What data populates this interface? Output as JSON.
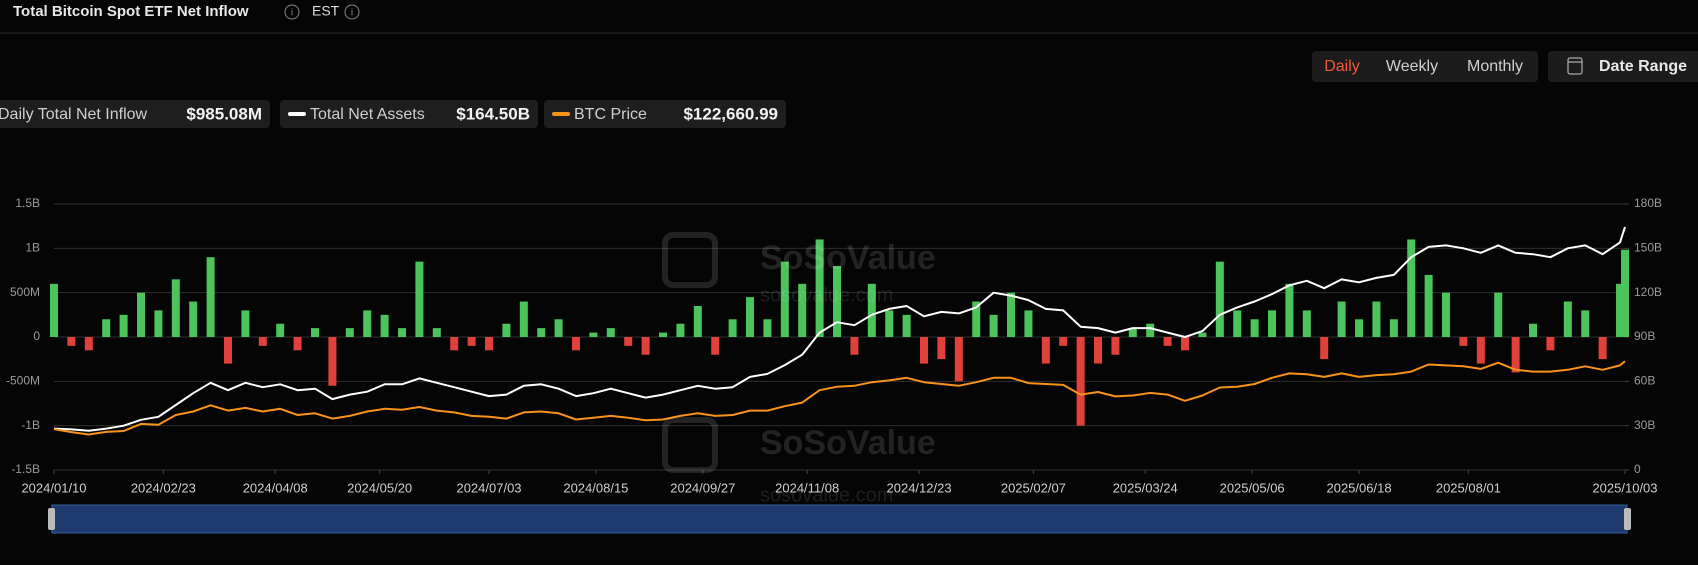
{
  "header": {
    "title": "Total Bitcoin Spot ETF Net Inflow",
    "timezone": "EST"
  },
  "controls": {
    "periods": [
      "Daily",
      "Weekly",
      "Monthly"
    ],
    "active": "Daily",
    "date_range": "Date Range"
  },
  "watermark": {
    "brand": "SoSoValue",
    "site": "sosovalue.com"
  },
  "chart_data": {
    "type": "combo",
    "x": [
      "2024/01/10",
      "2024/01/17",
      "2024/01/24",
      "2024/01/31",
      "2024/02/07",
      "2024/02/14",
      "2024/02/21",
      "2024/02/28",
      "2024/03/06",
      "2024/03/13",
      "2024/03/20",
      "2024/03/27",
      "2024/04/03",
      "2024/04/10",
      "2024/04/17",
      "2024/04/24",
      "2024/05/01",
      "2024/05/08",
      "2024/05/15",
      "2024/05/22",
      "2024/05/29",
      "2024/06/05",
      "2024/06/12",
      "2024/06/19",
      "2024/06/26",
      "2024/07/03",
      "2024/07/10",
      "2024/07/17",
      "2024/07/24",
      "2024/07/31",
      "2024/08/07",
      "2024/08/14",
      "2024/08/21",
      "2024/08/28",
      "2024/09/04",
      "2024/09/11",
      "2024/09/18",
      "2024/09/25",
      "2024/10/02",
      "2024/10/09",
      "2024/10/16",
      "2024/10/23",
      "2024/10/30",
      "2024/11/06",
      "2024/11/13",
      "2024/11/20",
      "2024/11/27",
      "2024/12/04",
      "2024/12/11",
      "2024/12/18",
      "2024/12/25",
      "2025/01/01",
      "2025/01/08",
      "2025/01/15",
      "2025/01/22",
      "2025/01/29",
      "2025/02/05",
      "2025/02/12",
      "2025/02/19",
      "2025/02/26",
      "2025/03/05",
      "2025/03/12",
      "2025/03/19",
      "2025/03/26",
      "2025/04/02",
      "2025/04/09",
      "2025/04/16",
      "2025/04/23",
      "2025/04/30",
      "2025/05/07",
      "2025/05/14",
      "2025/05/21",
      "2025/05/28",
      "2025/06/04",
      "2025/06/11",
      "2025/06/18",
      "2025/06/25",
      "2025/07/02",
      "2025/07/09",
      "2025/07/16",
      "2025/07/23",
      "2025/07/30",
      "2025/08/06",
      "2025/08/13",
      "2025/08/20",
      "2025/08/27",
      "2025/09/03",
      "2025/09/10",
      "2025/09/17",
      "2025/09/24",
      "2025/10/01",
      "2025/10/03"
    ],
    "xlim": [
      "2024/01/10",
      "2025/10/03"
    ],
    "xticks": [
      "2024/01/10",
      "2024/02/23",
      "2024/04/08",
      "2024/05/20",
      "2024/07/03",
      "2024/08/15",
      "2024/09/27",
      "2024/11/08",
      "2024/12/23",
      "2025/02/07",
      "2025/03/24",
      "2025/05/06",
      "2025/06/18",
      "2025/08/01",
      "2025/10/03"
    ],
    "ylim": [
      -1500000000,
      1500000000
    ],
    "yticks": [
      {
        "value": 1500000000,
        "label": "1.5B"
      },
      {
        "value": 1000000000,
        "label": "1B"
      },
      {
        "value": 500000000,
        "label": "500M"
      },
      0,
      {
        "value": -500000000,
        "label": "-500M"
      },
      {
        "value": -1000000000,
        "label": "-1B"
      },
      {
        "value": -1500000000,
        "label": "-1.5B"
      }
    ],
    "y2lim": [
      0,
      180000000000
    ],
    "y2ticks": [
      {
        "value": 180000000000,
        "label": "180B"
      },
      {
        "value": 150000000000,
        "label": "150B"
      },
      {
        "value": 120000000000,
        "label": "120B"
      },
      {
        "value": 90000000000,
        "label": "90B"
      },
      {
        "value": 60000000000,
        "label": "60B"
      },
      {
        "value": 30000000000,
        "label": "30B"
      },
      0
    ],
    "y3lim": [
      0,
      300000
    ],
    "grid": true,
    "series": [
      {
        "name": "Daily Total Net Inflow",
        "latest_label": "$985.08M",
        "type": "bar",
        "axis": "y",
        "color": "#4cc35b",
        "negative_color": "#e0413a",
        "values": [
          600000000.0,
          -100000000.0,
          -150000000.0,
          200000000.0,
          250000000.0,
          500000000.0,
          300000000.0,
          650000000.0,
          400000000.0,
          900000000.0,
          -300000000.0,
          300000000.0,
          -100000000.0,
          150000000.0,
          -150000000.0,
          100000000.0,
          -550000000.0,
          100000000.0,
          300000000.0,
          250000000.0,
          100000000.0,
          850000000.0,
          100000000.0,
          -150000000.0,
          -100000000.0,
          -150000000.0,
          150000000.0,
          400000000.0,
          100000000.0,
          200000000.0,
          -150000000.0,
          50000000.0,
          100000000.0,
          -100000000.0,
          -200000000.0,
          50000000.0,
          150000000.0,
          350000000.0,
          -200000000.0,
          200000000.0,
          450000000.0,
          200000000.0,
          850000000.0,
          600000000.0,
          1100000000.0,
          800000000.0,
          -200000000.0,
          600000000.0,
          300000000.0,
          250000000.0,
          -300000000.0,
          -250000000.0,
          -500000000.0,
          400000000.0,
          250000000.0,
          500000000.0,
          300000000.0,
          -300000000.0,
          -100000000.0,
          -1000000000.0,
          -300000000.0,
          -200000000.0,
          100000000.0,
          150000000.0,
          -100000000.0,
          -150000000.0,
          50000000.0,
          850000000.0,
          300000000.0,
          200000000.0,
          300000000.0,
          600000000.0,
          300000000.0,
          -250000000.0,
          400000000.0,
          200000000.0,
          400000000.0,
          200000000.0,
          1100000000.0,
          700000000.0,
          500000000.0,
          -100000000.0,
          -300000000.0,
          500000000.0,
          -400000000.0,
          150000000.0,
          -150000000.0,
          400000000.0,
          300000000.0,
          -250000000.0,
          600000000.0,
          985080000
        ]
      },
      {
        "name": "Total Net Assets",
        "latest_label": "$164.50B",
        "type": "line",
        "axis": "y2",
        "color": "#ffffff",
        "values": [
          28000000000.0,
          27500000000.0,
          26500000000.0,
          28000000000.0,
          30000000000.0,
          34000000000.0,
          36000000000.0,
          44000000000.0,
          52000000000.0,
          59000000000.0,
          54000000000.0,
          59000000000.0,
          56000000000.0,
          58000000000.0,
          54000000000.0,
          55000000000.0,
          48000000000.0,
          51000000000.0,
          53000000000.0,
          58000000000.0,
          58000000000.0,
          62000000000.0,
          59000000000.0,
          56000000000.0,
          53000000000.0,
          50000000000.0,
          51000000000.0,
          57000000000.0,
          58000000000.0,
          55000000000.0,
          50000000000.0,
          52000000000.0,
          55000000000.0,
          52000000000.0,
          49000000000.0,
          51000000000.0,
          54000000000.0,
          57000000000.0,
          55000000000.0,
          56000000000.0,
          63000000000.0,
          65000000000.0,
          71000000000.0,
          78000000000.0,
          93000000000.0,
          100000000000.0,
          98000000000.0,
          105000000000.0,
          109000000000.0,
          111000000000.0,
          104000000000.0,
          107000000000.0,
          106000000000.0,
          110000000000.0,
          120000000000.0,
          118000000000.0,
          115000000000.0,
          109000000000.0,
          108000000000.0,
          97000000000.0,
          96000000000.0,
          93000000000.0,
          96000000000.0,
          96000000000.0,
          93000000000.0,
          90000000000.0,
          94000000000.0,
          105000000000.0,
          110000000000.0,
          114000000000.0,
          119000000000.0,
          125000000000.0,
          128000000000.0,
          123000000000.0,
          129000000000.0,
          127000000000.0,
          130000000000.0,
          132000000000.0,
          144000000000.0,
          151000000000.0,
          152000000000.0,
          150000000000.0,
          147000000000.0,
          152000000000.0,
          147000000000.0,
          146000000000.0,
          144000000000.0,
          150000000000.0,
          152000000000.0,
          146000000000.0,
          154000000000.0,
          164500000000
        ]
      },
      {
        "name": "BTC Price",
        "latest_label": "$122,660.99",
        "type": "line",
        "axis": "y3",
        "color": "#f7931a",
        "values": [
          46000,
          42700,
          40000,
          43000,
          44000,
          52000,
          51000,
          62000,
          66000,
          73000,
          67000,
          70000,
          66000,
          69000,
          62000,
          64000,
          58000,
          61000,
          66000,
          69000,
          68000,
          71000,
          67000,
          65000,
          61000,
          60000,
          58000,
          65000,
          66000,
          64000,
          57000,
          59000,
          61000,
          59000,
          56000,
          57000,
          61000,
          64000,
          61000,
          62000,
          67000,
          67000,
          72000,
          76000,
          90000,
          94000,
          95000,
          99000,
          101000,
          104000,
          99000,
          97000,
          95000,
          99000,
          104000,
          104000,
          98000,
          97000,
          96000,
          85000,
          88000,
          83000,
          84000,
          87000,
          85000,
          78000,
          84000,
          93000,
          94000,
          97000,
          104000,
          109000,
          108000,
          105000,
          109000,
          105000,
          107000,
          108000,
          111000,
          119000,
          118000,
          117000,
          114000,
          121000,
          113000,
          111000,
          111000,
          113000,
          117000,
          113000,
          118000,
          122660.99
        ]
      }
    ]
  }
}
